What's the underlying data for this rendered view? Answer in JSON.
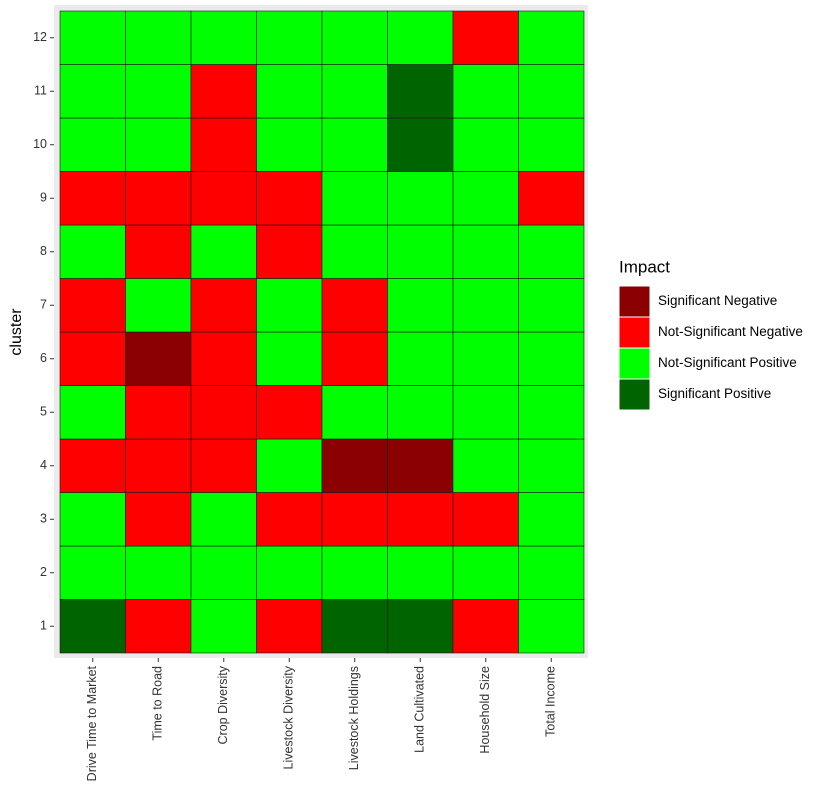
{
  "chart_data": {
    "type": "heatmap",
    "title": "",
    "xlabel": "",
    "ylabel": "cluster",
    "x_categories": [
      "Drive Time to Market",
      "Time to Road",
      "Crop Diversity",
      "Livestock Diversity",
      "Livestock Holdings",
      "Land Cultivated",
      "Household Size",
      "Total Income"
    ],
    "y_categories": [
      "1",
      "2",
      "3",
      "4",
      "5",
      "6",
      "7",
      "8",
      "9",
      "10",
      "11",
      "12"
    ],
    "grid": true,
    "legend": {
      "title": "Impact",
      "placement": "right",
      "entries": [
        {
          "label": "Significant Negative",
          "color": "#8B0000"
        },
        {
          "label": "Not-Significant Negative",
          "color": "#FF0000"
        },
        {
          "label": "Not-Significant Positive",
          "color": "#00FF00"
        },
        {
          "label": "Significant Positive",
          "color": "#006400"
        }
      ]
    },
    "cells": [
      [
        "Significant Positive",
        "Not-Significant Negative",
        "Not-Significant Positive",
        "Not-Significant Negative",
        "Significant Positive",
        "Significant Positive",
        "Not-Significant Negative",
        "Not-Significant Positive"
      ],
      [
        "Not-Significant Positive",
        "Not-Significant Positive",
        "Not-Significant Positive",
        "Not-Significant Positive",
        "Not-Significant Positive",
        "Not-Significant Positive",
        "Not-Significant Positive",
        "Not-Significant Positive"
      ],
      [
        "Not-Significant Positive",
        "Not-Significant Negative",
        "Not-Significant Positive",
        "Not-Significant Negative",
        "Not-Significant Negative",
        "Not-Significant Negative",
        "Not-Significant Negative",
        "Not-Significant Positive"
      ],
      [
        "Not-Significant Negative",
        "Not-Significant Negative",
        "Not-Significant Negative",
        "Not-Significant Positive",
        "Significant Negative",
        "Significant Negative",
        "Not-Significant Positive",
        "Not-Significant Positive"
      ],
      [
        "Not-Significant Positive",
        "Not-Significant Negative",
        "Not-Significant Negative",
        "Not-Significant Negative",
        "Not-Significant Positive",
        "Not-Significant Positive",
        "Not-Significant Positive",
        "Not-Significant Positive"
      ],
      [
        "Not-Significant Negative",
        "Significant Negative",
        "Not-Significant Negative",
        "Not-Significant Positive",
        "Not-Significant Negative",
        "Not-Significant Positive",
        "Not-Significant Positive",
        "Not-Significant Positive"
      ],
      [
        "Not-Significant Negative",
        "Not-Significant Positive",
        "Not-Significant Negative",
        "Not-Significant Positive",
        "Not-Significant Negative",
        "Not-Significant Positive",
        "Not-Significant Positive",
        "Not-Significant Positive"
      ],
      [
        "Not-Significant Positive",
        "Not-Significant Negative",
        "Not-Significant Positive",
        "Not-Significant Negative",
        "Not-Significant Positive",
        "Not-Significant Positive",
        "Not-Significant Positive",
        "Not-Significant Positive"
      ],
      [
        "Not-Significant Negative",
        "Not-Significant Negative",
        "Not-Significant Negative",
        "Not-Significant Negative",
        "Not-Significant Positive",
        "Not-Significant Positive",
        "Not-Significant Positive",
        "Not-Significant Negative"
      ],
      [
        "Not-Significant Positive",
        "Not-Significant Positive",
        "Not-Significant Negative",
        "Not-Significant Positive",
        "Not-Significant Positive",
        "Significant Positive",
        "Not-Significant Positive",
        "Not-Significant Positive"
      ],
      [
        "Not-Significant Positive",
        "Not-Significant Positive",
        "Not-Significant Negative",
        "Not-Significant Positive",
        "Not-Significant Positive",
        "Significant Positive",
        "Not-Significant Positive",
        "Not-Significant Positive"
      ],
      [
        "Not-Significant Positive",
        "Not-Significant Positive",
        "Not-Significant Positive",
        "Not-Significant Positive",
        "Not-Significant Positive",
        "Not-Significant Positive",
        "Not-Significant Negative",
        "Not-Significant Positive"
      ]
    ],
    "colors": {
      "panel_background": "#EBEBEB",
      "cell_border": "#1A1A1A",
      "tick_text": "#333333"
    }
  }
}
